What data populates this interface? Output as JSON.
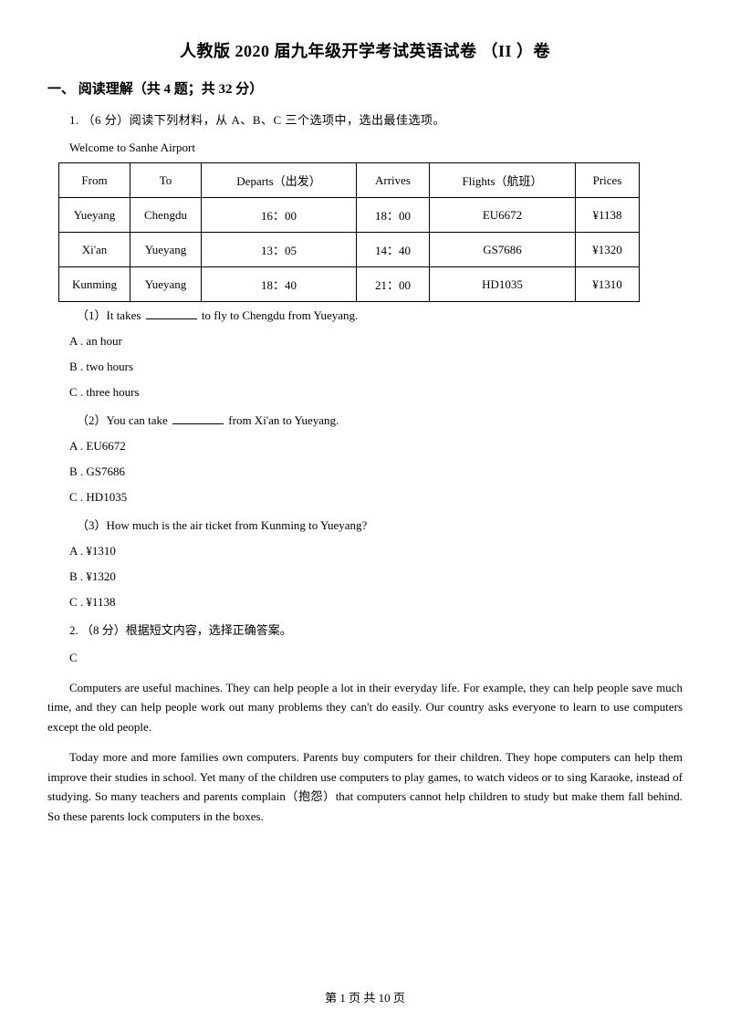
{
  "title": "人教版 2020 届九年级开学考试英语试卷  （II ）卷",
  "section": "一、 阅读理解（共 4 题；共 32 分）",
  "q1": {
    "intro": "1. （6 分）阅读下列材料，从 A、B、C 三个选项中，选出最佳选项。",
    "welcome": "Welcome to Sanhe Airport",
    "headers": [
      "From",
      "To",
      "Departs（出发）",
      "Arrives",
      "Flights（航班）",
      "Prices"
    ],
    "rows": [
      [
        "Yueyang",
        "Chengdu",
        "16：00",
        "18：00",
        "EU6672",
        "¥1138"
      ],
      [
        "Xi'an",
        "Yueyang",
        "13：05",
        "14：40",
        "GS7686",
        "¥1320"
      ],
      [
        "Kunming",
        "Yueyang",
        "18：40",
        "21：00",
        "HD1035",
        "¥1310"
      ]
    ],
    "sub1": {
      "pre": "（1）It takes ",
      "post": " to fly to Chengdu from Yueyang.",
      "a": "A . an hour",
      "b": "B . two hours",
      "c": "C . three hours"
    },
    "sub2": {
      "pre": "（2）You can take ",
      "post": " from Xi'an to Yueyang.",
      "a": "A . EU6672",
      "b": "B . GS7686",
      "c": "C . HD1035"
    },
    "sub3": {
      "text": "（3）How much is the air ticket from Kunming to Yueyang?",
      "a": "A . ¥1310",
      "b": "B . ¥1320",
      "c": "C . ¥1138"
    }
  },
  "q2": {
    "intro": "2. （8 分）根据短文内容，选择正确答案。",
    "letter": "C",
    "p1": "Computers are useful machines. They can help people a lot in their everyday life. For example, they can help people save much time, and they can help people work out many problems they can't do easily. Our country asks everyone to learn to use computers except the old people.",
    "p2": "Today more and more families own computers. Parents buy computers for their children. They hope computers can help them improve their studies in school. Yet many of the children use computers to play games, to watch videos or to sing Karaoke, instead of studying. So many teachers and parents complain（抱怨）that computers cannot help children to study but make them fall behind. So these parents lock computers in the boxes."
  },
  "footer": "第 1 页 共 10 页"
}
